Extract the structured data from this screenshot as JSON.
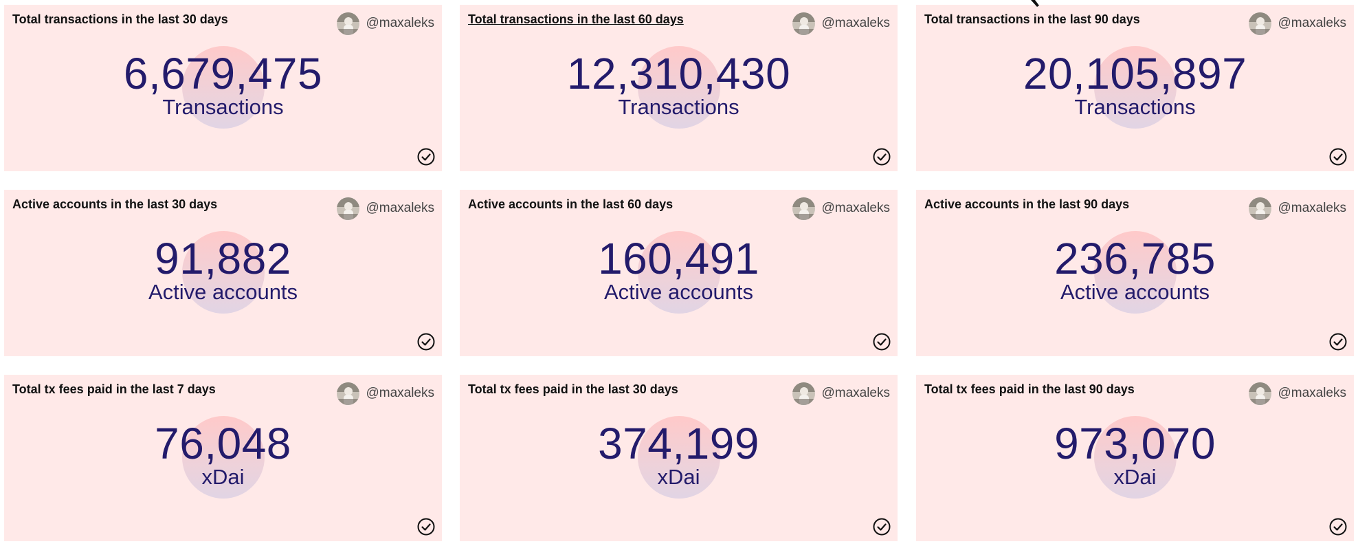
{
  "cards": [
    {
      "title": "Total transactions in the last 30 days",
      "author": "@maxaleks",
      "value": "6,679,475",
      "unit": "Transactions"
    },
    {
      "title": "Total transactions in the last 60 days",
      "author": "@maxaleks",
      "value": "12,310,430",
      "unit": "Transactions"
    },
    {
      "title": "Total transactions in the last 90 days",
      "author": "@maxaleks",
      "value": "20,105,897",
      "unit": "Transactions"
    },
    {
      "title": "Active accounts in the last 30 days",
      "author": "@maxaleks",
      "value": "91,882",
      "unit": "Active accounts"
    },
    {
      "title": "Active accounts in the last 60 days",
      "author": "@maxaleks",
      "value": "160,491",
      "unit": "Active accounts"
    },
    {
      "title": "Active accounts in the last 90 days",
      "author": "@maxaleks",
      "value": "236,785",
      "unit": "Active accounts"
    },
    {
      "title": "Total tx fees paid in the last 7 days",
      "author": "@maxaleks",
      "value": "76,048",
      "unit": "xDai"
    },
    {
      "title": "Total tx fees paid in the last 30 days",
      "author": "@maxaleks",
      "value": "374,199",
      "unit": "xDai"
    },
    {
      "title": "Total tx fees paid in the last 90 days",
      "author": "@maxaleks",
      "value": "973,070",
      "unit": "xDai"
    }
  ],
  "icons": {
    "avatar": "avatar-photo",
    "status": "check-circle-icon",
    "pointer": "mouse-cursor-icon"
  },
  "colors": {
    "card_background": "#ffe9e8",
    "metric_text": "#231b6b",
    "title_text": "#111111",
    "author_text": "#444444"
  }
}
